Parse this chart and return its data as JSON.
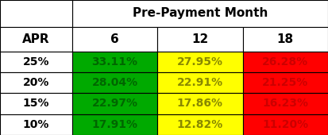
{
  "title": "Pre-Payment Month",
  "col_headers": [
    "APR",
    "6",
    "12",
    "18"
  ],
  "row_labels": [
    "25%",
    "20%",
    "15%",
    "10%"
  ],
  "cell_values": [
    [
      "33.11%",
      "27.95%",
      "26.28%"
    ],
    [
      "28.04%",
      "22.91%",
      "21.25%"
    ],
    [
      "22.97%",
      "17.86%",
      "16.23%"
    ],
    [
      "17.91%",
      "12.82%",
      "11.20%"
    ]
  ],
  "cell_colors": [
    [
      "#00aa00",
      "#ffff00",
      "#ff0000"
    ],
    [
      "#00aa00",
      "#ffff00",
      "#ff0000"
    ],
    [
      "#00aa00",
      "#ffff00",
      "#ff0000"
    ],
    [
      "#00aa00",
      "#ffff00",
      "#ff0000"
    ]
  ],
  "cell_text_color": "#008000",
  "text_colors": [
    [
      "#006600",
      "#888800",
      "#cc0000"
    ],
    [
      "#006600",
      "#888800",
      "#cc0000"
    ],
    [
      "#006600",
      "#888800",
      "#cc0000"
    ],
    [
      "#006600",
      "#888800",
      "#cc0000"
    ]
  ],
  "background_color": "#ffffff",
  "header_fontsize": 11,
  "cell_fontsize": 10,
  "row_label_fontsize": 10,
  "figsize": [
    4.13,
    1.7
  ],
  "dpi": 100
}
